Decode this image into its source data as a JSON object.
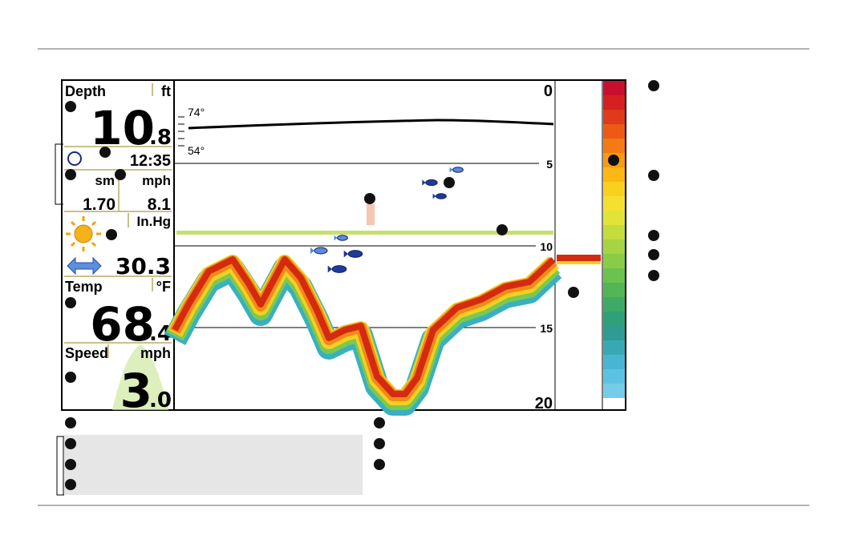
{
  "sidebar": {
    "depth": {
      "label": "Depth",
      "unit": "ft",
      "value": "10",
      "decimal": ".8"
    },
    "time": "12:35",
    "trip": {
      "distance_unit": "sm",
      "speed_unit": "mph",
      "distance": "1.70",
      "speed": "8.1"
    },
    "pressure": {
      "unit": "In.Hg",
      "value": "30.3"
    },
    "temp": {
      "label": "Temp",
      "unit": "°F",
      "value": "68",
      "decimal": ".4"
    },
    "speed": {
      "label": "Speed",
      "unit": "mph",
      "value": "3",
      "decimal": ".0"
    }
  },
  "sonar": {
    "depth_scale": [
      "0",
      "5",
      "10",
      "15",
      "20"
    ],
    "temp_graph": [
      "74°",
      "54°"
    ]
  }
}
